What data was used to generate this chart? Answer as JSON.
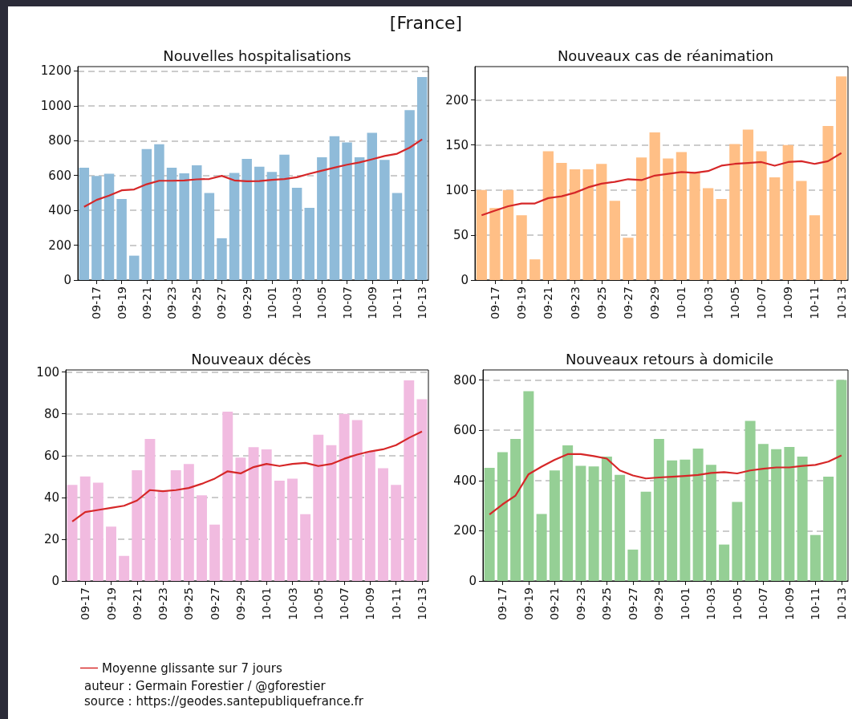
{
  "chart_data": [
    {
      "type": "other",
      "title": "[France]",
      "annotations": [
        "auteur : Germain Forestier / @gforestier",
        "source : https://geodes.santepubliquefrance.fr"
      ]
    },
    {
      "type": "bar",
      "title": "Nouvelles hospitalisations",
      "categories": [
        null,
        "09-17",
        null,
        "09-19",
        null,
        "09-21",
        null,
        "09-23",
        null,
        "09-25",
        null,
        "09-27",
        null,
        "09-29",
        null,
        "10-01",
        null,
        "10-03",
        null,
        "10-05",
        null,
        "10-07",
        null,
        "10-09",
        null,
        "10-11",
        null,
        "10-13"
      ],
      "series": [
        {
          "type": "bar",
          "color": "#8fbbd9",
          "values": [
            645,
            597,
            610,
            465,
            140,
            752,
            780,
            645,
            612,
            658,
            500,
            240,
            615,
            695,
            650,
            620,
            720,
            530,
            415,
            705,
            825,
            790,
            705,
            845,
            690,
            500,
            975,
            1165
          ]
        },
        {
          "type": "line",
          "color": "#d62728",
          "values": [
            420,
            460,
            485,
            515,
            520,
            550,
            570,
            570,
            572,
            578,
            580,
            598,
            572,
            567,
            568,
            575,
            580,
            590,
            610,
            628,
            645,
            662,
            675,
            693,
            712,
            725,
            760,
            808
          ]
        }
      ],
      "ylim": [
        0,
        1225
      ],
      "yticks": [
        0,
        200,
        400,
        600,
        800,
        1000,
        1200
      ],
      "grid": "y",
      "marker": "none"
    },
    {
      "type": "bar",
      "title": "Nouveaux cas de réanimation",
      "categories": [
        null,
        "09-17",
        null,
        "09-19",
        null,
        "09-21",
        null,
        "09-23",
        null,
        "09-25",
        null,
        "09-27",
        null,
        "09-29",
        null,
        "10-01",
        null,
        "10-03",
        null,
        "10-05",
        null,
        "10-07",
        null,
        "10-09",
        null,
        "10-11",
        null,
        "10-13"
      ],
      "series": [
        {
          "type": "bar",
          "color": "#ffbf86",
          "values": [
            100,
            80,
            100,
            72,
            23,
            143,
            130,
            123,
            123,
            129,
            88,
            47,
            136,
            164,
            135,
            142,
            120,
            102,
            90,
            151,
            167,
            143,
            114,
            150,
            110,
            72,
            171,
            226
          ]
        },
        {
          "type": "line",
          "color": "#d62728",
          "values": [
            72,
            77,
            82,
            85,
            85,
            91,
            93,
            97,
            103,
            107,
            109,
            112,
            111,
            116,
            118,
            120,
            119,
            121,
            127,
            129,
            130,
            131,
            127,
            131,
            132,
            129,
            132,
            141
          ]
        }
      ],
      "ylim": [
        0,
        237
      ],
      "yticks": [
        0,
        50,
        100,
        150,
        200
      ],
      "grid": "y",
      "marker": "none"
    },
    {
      "type": "bar",
      "title": "Nouveaux décès",
      "categories": [
        null,
        "09-17",
        null,
        "09-19",
        null,
        "09-21",
        null,
        "09-23",
        null,
        "09-25",
        null,
        "09-27",
        null,
        "09-29",
        null,
        "10-01",
        null,
        "10-03",
        null,
        "10-05",
        null,
        "10-07",
        null,
        "10-09",
        null,
        "10-11",
        null,
        "10-13"
      ],
      "series": [
        {
          "type": "bar",
          "color": "#f1bbe0",
          "values": [
            46,
            50,
            47,
            26,
            12,
            53,
            68,
            43,
            53,
            56,
            41,
            27,
            81,
            59,
            64,
            63,
            48,
            49,
            32,
            70,
            65,
            80,
            77,
            62,
            54,
            46,
            96,
            87
          ]
        },
        {
          "type": "line",
          "name": "Moyenne glissante sur 7 jours",
          "color": "#d62728",
          "values": [
            28.5,
            33,
            34,
            35,
            36,
            38.5,
            43.5,
            43,
            43.5,
            44.5,
            46.5,
            49,
            52.5,
            51.5,
            54.5,
            56,
            55,
            56,
            56.5,
            55,
            56,
            58.5,
            60.5,
            62,
            63,
            65,
            68.5,
            71.5
          ]
        }
      ],
      "ylim": [
        0,
        101
      ],
      "yticks": [
        0,
        20,
        40,
        60,
        80,
        100
      ],
      "grid": "y",
      "marker": "none",
      "legend": "bottom"
    },
    {
      "type": "bar",
      "title": "Nouveaux retours à domicile",
      "categories": [
        null,
        "09-17",
        null,
        "09-19",
        null,
        "09-21",
        null,
        "09-23",
        null,
        "09-25",
        null,
        "09-27",
        null,
        "09-29",
        null,
        "10-01",
        null,
        "10-03",
        null,
        "10-05",
        null,
        "10-07",
        null,
        "10-09",
        null,
        "10-11",
        null,
        "10-13"
      ],
      "series": [
        {
          "type": "bar",
          "color": "#95cf95",
          "values": [
            450,
            513,
            565,
            755,
            267,
            440,
            540,
            458,
            456,
            495,
            422,
            125,
            355,
            565,
            480,
            483,
            527,
            462,
            145,
            315,
            637,
            545,
            525,
            533,
            495,
            183,
            415,
            800
          ]
        },
        {
          "type": "line",
          "color": "#d62728",
          "values": [
            265,
            305,
            340,
            425,
            455,
            482,
            505,
            505,
            497,
            487,
            440,
            420,
            408,
            412,
            415,
            418,
            422,
            430,
            433,
            428,
            440,
            447,
            452,
            452,
            458,
            462,
            475,
            500
          ]
        }
      ],
      "ylim": [
        0,
        840
      ],
      "yticks": [
        0,
        200,
        400,
        600,
        800
      ],
      "grid": "y",
      "marker": "none"
    }
  ]
}
